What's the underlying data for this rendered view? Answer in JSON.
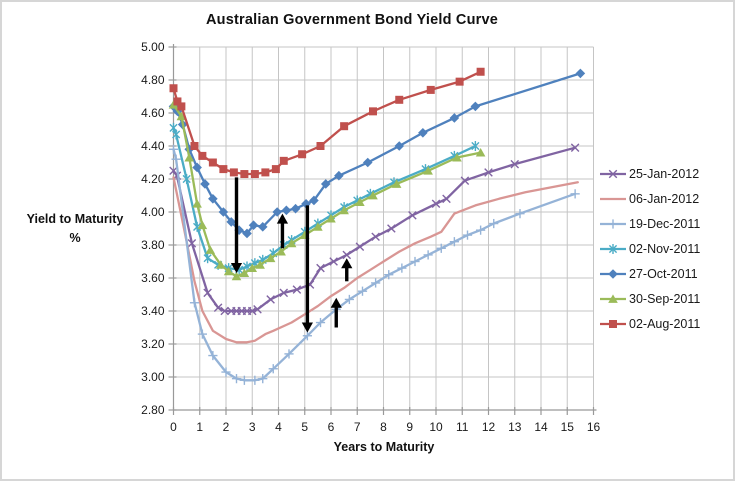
{
  "chart_data": {
    "type": "line",
    "title": "Australian Government Bond Yield Curve",
    "xlabel": "Years to Maturity",
    "ylabel": "Yield to Maturity",
    "ylabel_unit": "%",
    "xlim": [
      0,
      16
    ],
    "ylim": [
      2.8,
      5.0
    ],
    "x_ticks": [
      0,
      1,
      2,
      3,
      4,
      5,
      6,
      7,
      8,
      9,
      10,
      11,
      12,
      13,
      14,
      15,
      16
    ],
    "y_ticks": [
      "5.00",
      "4.80",
      "4.60",
      "4.40",
      "4.20",
      "4.00",
      "3.80",
      "3.60",
      "3.40",
      "3.20",
      "3.00",
      "2.80"
    ],
    "grid": true,
    "legend_position": "right",
    "colors": {
      "grid": "#c5c5c5",
      "axis": "#999999",
      "text": "#1a1a1a",
      "annotation": "#000000"
    },
    "series": [
      {
        "name": "25-Jan-2012",
        "color": "#8064A2",
        "marker": "x",
        "points": [
          [
            0,
            4.25
          ],
          [
            0.13,
            4.22
          ],
          [
            0.7,
            3.81
          ],
          [
            1.3,
            3.51
          ],
          [
            1.7,
            3.42
          ],
          [
            1.95,
            3.4
          ],
          [
            2.2,
            3.4
          ],
          [
            2.4,
            3.4
          ],
          [
            2.6,
            3.4
          ],
          [
            2.8,
            3.4
          ],
          [
            3.0,
            3.4
          ],
          [
            3.2,
            3.41
          ],
          [
            3.7,
            3.47
          ],
          [
            4.2,
            3.51
          ],
          [
            4.7,
            3.53
          ],
          [
            5.2,
            3.56
          ],
          [
            5.6,
            3.66
          ],
          [
            6.1,
            3.7
          ],
          [
            6.6,
            3.74
          ],
          [
            7.1,
            3.79
          ],
          [
            7.7,
            3.85
          ],
          [
            8.3,
            3.9
          ],
          [
            9.1,
            3.98
          ],
          [
            10.0,
            4.05
          ],
          [
            10.4,
            4.08
          ],
          [
            11.1,
            4.19
          ],
          [
            12.0,
            4.24
          ],
          [
            13.0,
            4.29
          ],
          [
            15.3,
            4.39
          ]
        ]
      },
      {
        "name": "06-Jan-2012",
        "color": "#D99694",
        "marker": "none",
        "points": [
          [
            0,
            4.21
          ],
          [
            0.4,
            3.9
          ],
          [
            0.8,
            3.58
          ],
          [
            1.1,
            3.4
          ],
          [
            1.5,
            3.28
          ],
          [
            2.0,
            3.23
          ],
          [
            2.4,
            3.21
          ],
          [
            2.8,
            3.21
          ],
          [
            3.1,
            3.22
          ],
          [
            3.5,
            3.26
          ],
          [
            3.8,
            3.28
          ],
          [
            4.5,
            3.33
          ],
          [
            5.0,
            3.38
          ],
          [
            5.5,
            3.43
          ],
          [
            6.0,
            3.49
          ],
          [
            6.5,
            3.54
          ],
          [
            7.0,
            3.6
          ],
          [
            7.5,
            3.65
          ],
          [
            8.0,
            3.7
          ],
          [
            8.6,
            3.76
          ],
          [
            9.2,
            3.81
          ],
          [
            9.8,
            3.85
          ],
          [
            10.2,
            3.88
          ],
          [
            10.7,
            3.99
          ],
          [
            11.5,
            4.04
          ],
          [
            12.4,
            4.08
          ],
          [
            13.4,
            4.12
          ],
          [
            15.4,
            4.18
          ]
        ]
      },
      {
        "name": "19-Dec-2011",
        "color": "#95B3D7",
        "marker": "plus",
        "points": [
          [
            0,
            4.38
          ],
          [
            0.1,
            4.32
          ],
          [
            0.8,
            3.45
          ],
          [
            1.1,
            3.26
          ],
          [
            1.5,
            3.13
          ],
          [
            2.0,
            3.03
          ],
          [
            2.4,
            2.99
          ],
          [
            2.7,
            2.98
          ],
          [
            3.1,
            2.98
          ],
          [
            3.4,
            2.99
          ],
          [
            3.8,
            3.05
          ],
          [
            4.4,
            3.14
          ],
          [
            5.1,
            3.25
          ],
          [
            5.6,
            3.33
          ],
          [
            6.2,
            3.41
          ],
          [
            6.7,
            3.47
          ],
          [
            7.2,
            3.52
          ],
          [
            7.7,
            3.57
          ],
          [
            8.2,
            3.62
          ],
          [
            8.7,
            3.66
          ],
          [
            9.2,
            3.7
          ],
          [
            9.7,
            3.74
          ],
          [
            10.2,
            3.78
          ],
          [
            10.7,
            3.82
          ],
          [
            11.2,
            3.86
          ],
          [
            11.7,
            3.89
          ],
          [
            12.2,
            3.93
          ],
          [
            13.2,
            3.99
          ],
          [
            15.3,
            4.11
          ]
        ]
      },
      {
        "name": "02-Nov-2011",
        "color": "#4BACC6",
        "marker": "asterisk",
        "points": [
          [
            0,
            4.51
          ],
          [
            0.1,
            4.47
          ],
          [
            0.5,
            4.2
          ],
          [
            0.9,
            3.91
          ],
          [
            1.3,
            3.72
          ],
          [
            1.7,
            3.68
          ],
          [
            2.1,
            3.66
          ],
          [
            2.5,
            3.65
          ],
          [
            2.8,
            3.67
          ],
          [
            3.1,
            3.69
          ],
          [
            3.4,
            3.71
          ],
          [
            3.8,
            3.75
          ],
          [
            4.2,
            3.8
          ],
          [
            4.5,
            3.83
          ],
          [
            5.0,
            3.88
          ],
          [
            5.5,
            3.93
          ],
          [
            6.0,
            3.98
          ],
          [
            6.5,
            4.03
          ],
          [
            7.0,
            4.07
          ],
          [
            7.5,
            4.11
          ],
          [
            8.4,
            4.18
          ],
          [
            9.6,
            4.26
          ],
          [
            10.7,
            4.34
          ],
          [
            11.5,
            4.4
          ]
        ]
      },
      {
        "name": "27-Oct-2011",
        "color": "#4F81BD",
        "marker": "diamond",
        "points": [
          [
            0,
            4.64
          ],
          [
            0.15,
            4.61
          ],
          [
            0.35,
            4.53
          ],
          [
            0.6,
            4.38
          ],
          [
            0.9,
            4.27
          ],
          [
            1.2,
            4.17
          ],
          [
            1.5,
            4.08
          ],
          [
            1.9,
            4.0
          ],
          [
            2.2,
            3.94
          ],
          [
            2.5,
            3.89
          ],
          [
            2.8,
            3.87
          ],
          [
            3.05,
            3.92
          ],
          [
            3.4,
            3.91
          ],
          [
            3.95,
            4.0
          ],
          [
            4.3,
            4.01
          ],
          [
            4.65,
            4.02
          ],
          [
            5.05,
            4.05
          ],
          [
            5.35,
            4.07
          ],
          [
            5.8,
            4.17
          ],
          [
            6.3,
            4.22
          ],
          [
            7.4,
            4.3
          ],
          [
            8.6,
            4.4
          ],
          [
            9.5,
            4.48
          ],
          [
            10.7,
            4.57
          ],
          [
            11.5,
            4.64
          ],
          [
            15.5,
            4.84
          ]
        ]
      },
      {
        "name": "30-Sep-2011",
        "color": "#9BBB59",
        "marker": "triangle",
        "points": [
          [
            0,
            4.65
          ],
          [
            0.3,
            4.58
          ],
          [
            0.6,
            4.33
          ],
          [
            0.9,
            4.05
          ],
          [
            1.1,
            3.92
          ],
          [
            1.4,
            3.77
          ],
          [
            1.8,
            3.68
          ],
          [
            2.1,
            3.64
          ],
          [
            2.4,
            3.61
          ],
          [
            2.7,
            3.63
          ],
          [
            3.0,
            3.66
          ],
          [
            3.3,
            3.68
          ],
          [
            3.7,
            3.72
          ],
          [
            4.1,
            3.76
          ],
          [
            4.5,
            3.81
          ],
          [
            5.0,
            3.86
          ],
          [
            5.5,
            3.91
          ],
          [
            6.0,
            3.96
          ],
          [
            6.5,
            4.01
          ],
          [
            7.1,
            4.06
          ],
          [
            7.6,
            4.1
          ],
          [
            8.5,
            4.17
          ],
          [
            9.7,
            4.25
          ],
          [
            10.8,
            4.33
          ],
          [
            11.7,
            4.36
          ]
        ]
      },
      {
        "name": "02-Aug-2011",
        "color": "#C0504D",
        "marker": "square",
        "points": [
          [
            0,
            4.75
          ],
          [
            0.15,
            4.67
          ],
          [
            0.3,
            4.64
          ],
          [
            0.8,
            4.4
          ],
          [
            1.1,
            4.34
          ],
          [
            1.5,
            4.3
          ],
          [
            1.9,
            4.26
          ],
          [
            2.3,
            4.24
          ],
          [
            2.7,
            4.23
          ],
          [
            3.1,
            4.23
          ],
          [
            3.5,
            4.24
          ],
          [
            3.9,
            4.26
          ],
          [
            4.2,
            4.31
          ],
          [
            4.9,
            4.35
          ],
          [
            5.6,
            4.4
          ],
          [
            6.5,
            4.52
          ],
          [
            7.6,
            4.61
          ],
          [
            8.6,
            4.68
          ],
          [
            9.8,
            4.74
          ],
          [
            10.9,
            4.79
          ],
          [
            11.7,
            4.85
          ]
        ]
      }
    ],
    "annotations": [
      {
        "x": 2.4,
        "from": 4.21,
        "to": 3.63,
        "direction": "down"
      },
      {
        "x": 4.15,
        "from": 3.78,
        "to": 3.99,
        "direction": "up"
      },
      {
        "x": 5.1,
        "from": 4.04,
        "to": 3.27,
        "direction": "down"
      },
      {
        "x": 6.2,
        "from": 3.3,
        "to": 3.48,
        "direction": "up"
      },
      {
        "x": 6.6,
        "from": 3.58,
        "to": 3.72,
        "direction": "up"
      }
    ]
  }
}
